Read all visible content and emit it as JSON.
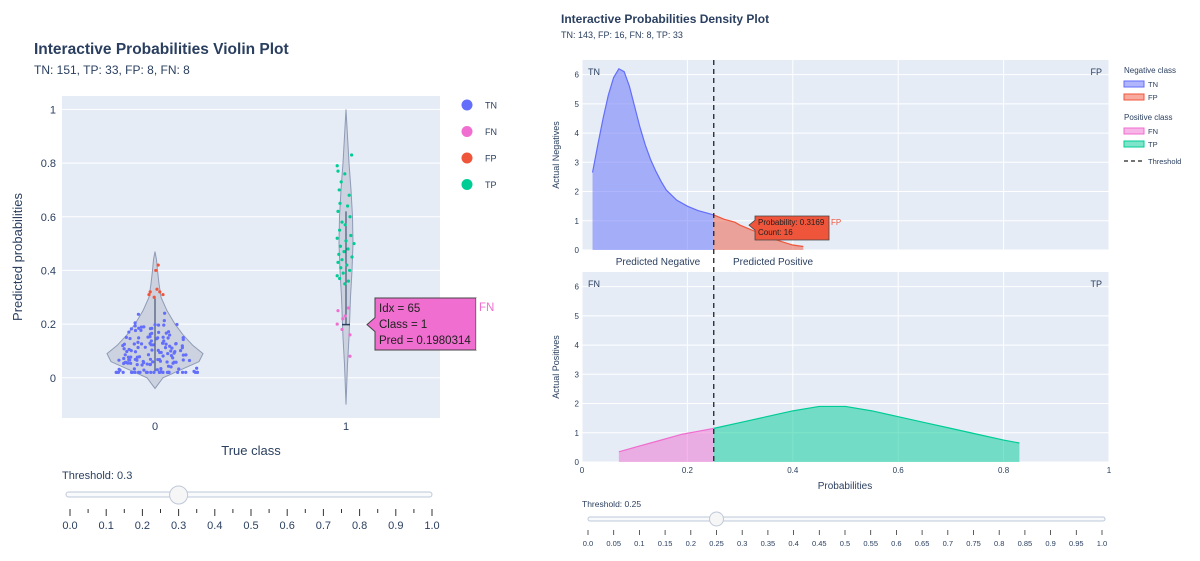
{
  "colors": {
    "plot_bg": "#e5ecf6",
    "grid": "#ffffff",
    "text": "#2a3f5f",
    "TN": "#636efa",
    "FN": "#ef6ecf",
    "FP": "#ef553b",
    "TP": "#00cc96",
    "violin_fill": "#c2c8d6",
    "violin_line": "#8e9bb5"
  },
  "chart_data": [
    {
      "type": "violin",
      "title": "Interactive Probabilities Violin Plot",
      "subtitle": "TN: 151,  TP: 33,  FP: 8,  FN: 8",
      "xlabel": "True class",
      "ylabel": "Predicted probabilities",
      "categories": [
        "0",
        "1"
      ],
      "ylim": [
        -0.15,
        1.05
      ],
      "yticks": [
        0,
        0.2,
        0.4,
        0.6,
        0.8,
        1
      ],
      "ytick_labels": [
        "0",
        "0.2",
        "0.4",
        "0.6",
        "0.8",
        "1"
      ],
      "legend": {
        "position": "right",
        "entries": [
          "TN",
          "FN",
          "FP",
          "TP"
        ]
      },
      "counts": {
        "TN": 151,
        "TP": 33,
        "FP": 8,
        "FN": 8
      },
      "fp_points": [
        [
          0.31,
          -0.15
        ],
        [
          0.32,
          -0.12
        ],
        [
          0.33,
          0.05
        ],
        [
          0.42,
          0.08
        ],
        [
          0.32,
          0.12
        ],
        [
          0.31,
          0.2
        ],
        [
          0.4,
          0.02
        ],
        [
          0.3,
          -0.02
        ]
      ],
      "fn_points": [
        [
          0.25,
          0.8
        ],
        [
          0.23,
          0.98
        ],
        [
          0.2,
          0.78
        ],
        [
          0.18,
          0.9
        ],
        [
          0.16,
          1.1
        ],
        [
          0.26,
          1.06
        ],
        [
          0.08,
          1.1
        ],
        [
          0.22,
          0.92
        ]
      ],
      "tp_points": [
        [
          0.79,
          0.78
        ],
        [
          0.77,
          0.8
        ],
        [
          0.83,
          1.14
        ],
        [
          0.76,
          0.97
        ],
        [
          0.73,
          0.88
        ],
        [
          0.7,
          0.83
        ],
        [
          0.68,
          1.08
        ],
        [
          0.65,
          0.85
        ],
        [
          0.64,
          1.04
        ],
        [
          0.62,
          0.8
        ],
        [
          0.6,
          1.1
        ],
        [
          0.58,
          0.9
        ],
        [
          0.57,
          0.98
        ],
        [
          0.55,
          0.84
        ],
        [
          0.53,
          1.12
        ],
        [
          0.52,
          0.78
        ],
        [
          0.51,
          1.0
        ],
        [
          0.5,
          1.2
        ],
        [
          0.49,
          0.86
        ],
        [
          0.48,
          1.05
        ],
        [
          0.47,
          0.95
        ],
        [
          0.46,
          0.82
        ],
        [
          0.45,
          1.15
        ],
        [
          0.44,
          0.9
        ],
        [
          0.43,
          0.8
        ],
        [
          0.42,
          1.02
        ],
        [
          0.41,
          0.87
        ],
        [
          0.4,
          1.09
        ],
        [
          0.39,
          0.93
        ],
        [
          0.38,
          0.78
        ],
        [
          0.37,
          0.84
        ],
        [
          0.36,
          1.06
        ],
        [
          0.35,
          0.97
        ]
      ],
      "tooltip": {
        "lines": [
          "Idx = 65",
          "Class = 1",
          "Pred = 0.1980314"
        ],
        "tag": "FN",
        "class": "1",
        "pred": 0.1980314
      },
      "slider": {
        "label": "Threshold: 0.3",
        "value": 0.3,
        "ticks": [
          "0.0",
          "0.1",
          "0.2",
          "0.3",
          "0.4",
          "0.5",
          "0.6",
          "0.7",
          "0.8",
          "0.9",
          "1.0"
        ]
      }
    },
    {
      "type": "area",
      "title": "Interactive Probabilities Density Plot",
      "subtitle": "TN: 143, FP: 16, FN: 8, TP: 33",
      "xlabel": "Probabilities",
      "xlim": [
        0,
        1
      ],
      "xticks": [
        "0",
        "0.2",
        "0.4",
        "0.6",
        "0.8",
        "1"
      ],
      "threshold": 0.25,
      "legend": {
        "position": "right",
        "negative_title": "Negative class",
        "positive_title": "Positive class",
        "entries": [
          "TN",
          "FP",
          "FN",
          "TP",
          "Threshold"
        ]
      },
      "top": {
        "ylabel": "Actual Negatives",
        "ylim": [
          0,
          6.5
        ],
        "yticks": [
          "0",
          "1",
          "2",
          "3",
          "4",
          "5",
          "6"
        ],
        "corner_left": "TN",
        "corner_right": "FP",
        "below_left": "Predicted Negative",
        "below_right": "Predicted Positive",
        "series": [
          {
            "name": "TN",
            "x": [
              0.02,
              0.03,
              0.04,
              0.05,
              0.06,
              0.07,
              0.08,
              0.09,
              0.1,
              0.11,
              0.12,
              0.13,
              0.14,
              0.15,
              0.16,
              0.18,
              0.2,
              0.22,
              0.24,
              0.25
            ],
            "y": [
              2.65,
              3.6,
              4.5,
              5.3,
              5.9,
              6.2,
              6.1,
              5.6,
              4.9,
              4.2,
              3.6,
              3.1,
              2.7,
              2.35,
              2.05,
              1.7,
              1.5,
              1.35,
              1.25,
              1.2
            ]
          },
          {
            "name": "FP",
            "x": [
              0.25,
              0.27,
              0.29,
              0.3,
              0.32,
              0.34,
              0.36,
              0.38,
              0.4,
              0.42
            ],
            "y": [
              1.2,
              1.05,
              0.95,
              0.85,
              0.7,
              0.55,
              0.4,
              0.28,
              0.17,
              0.12
            ]
          }
        ],
        "tooltip": {
          "lines": [
            "Probability: 0.3169",
            "Count: 16"
          ],
          "tag": "FP"
        }
      },
      "bottom": {
        "ylabel": "Actual Positives",
        "ylim": [
          0,
          6.5
        ],
        "yticks": [
          "0",
          "1",
          "2",
          "3",
          "4",
          "5",
          "6"
        ],
        "corner_left": "FN",
        "corner_right": "TP",
        "series": [
          {
            "name": "FN",
            "x": [
              0.07,
              0.1,
              0.13,
              0.16,
              0.19,
              0.22,
              0.25
            ],
            "y": [
              0.35,
              0.5,
              0.65,
              0.8,
              0.95,
              1.05,
              1.15
            ]
          },
          {
            "name": "TP",
            "x": [
              0.25,
              0.3,
              0.35,
              0.4,
              0.45,
              0.5,
              0.55,
              0.6,
              0.65,
              0.7,
              0.75,
              0.8,
              0.83
            ],
            "y": [
              1.15,
              1.35,
              1.55,
              1.75,
              1.9,
              1.9,
              1.75,
              1.55,
              1.35,
              1.15,
              0.95,
              0.75,
              0.65
            ]
          }
        ]
      },
      "slider": {
        "label": "Threshold: 0.25",
        "value": 0.25,
        "ticks": [
          "0.0",
          "0.05",
          "0.1",
          "0.15",
          "0.2",
          "0.25",
          "0.3",
          "0.35",
          "0.4",
          "0.45",
          "0.5",
          "0.55",
          "0.6",
          "0.65",
          "0.7",
          "0.75",
          "0.8",
          "0.85",
          "0.9",
          "0.95",
          "1.0"
        ]
      }
    }
  ]
}
